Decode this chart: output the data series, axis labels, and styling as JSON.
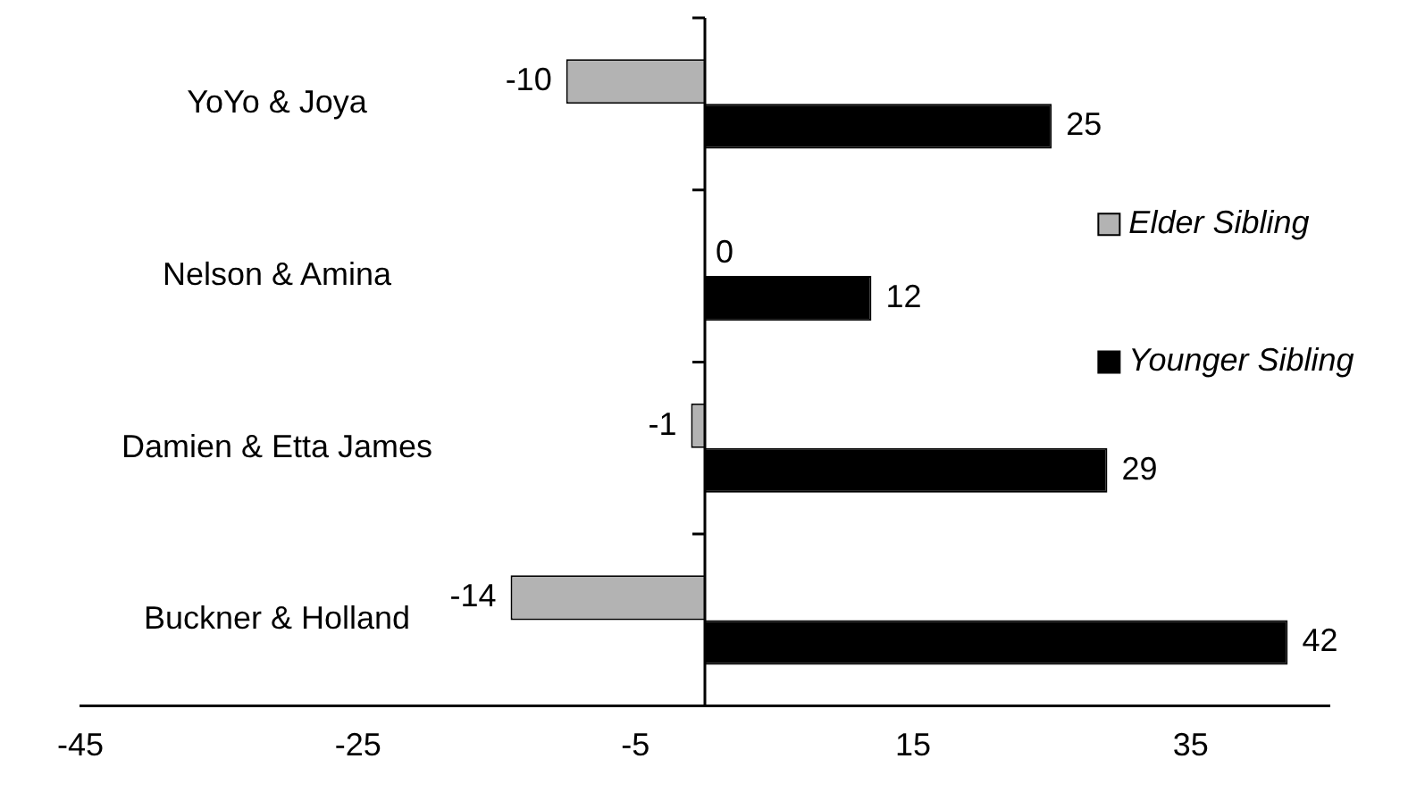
{
  "chart_data": {
    "type": "bar",
    "orientation": "horizontal",
    "categories": [
      "YoYo & Joya",
      "Nelson & Amina",
      "Damien & Etta James",
      "Buckner & Holland"
    ],
    "series": [
      {
        "name": "Elder Sibling",
        "color": "#b3b3b3",
        "values": [
          -10,
          0,
          -1,
          -14
        ]
      },
      {
        "name": "Younger Sibling",
        "color": "#000000",
        "values": [
          25,
          12,
          29,
          42
        ]
      }
    ],
    "xlim": [
      -45,
      45
    ],
    "xticks": [
      -45,
      -25,
      -5,
      15,
      35
    ],
    "data_labels": true,
    "legend": "right",
    "grid": false
  }
}
